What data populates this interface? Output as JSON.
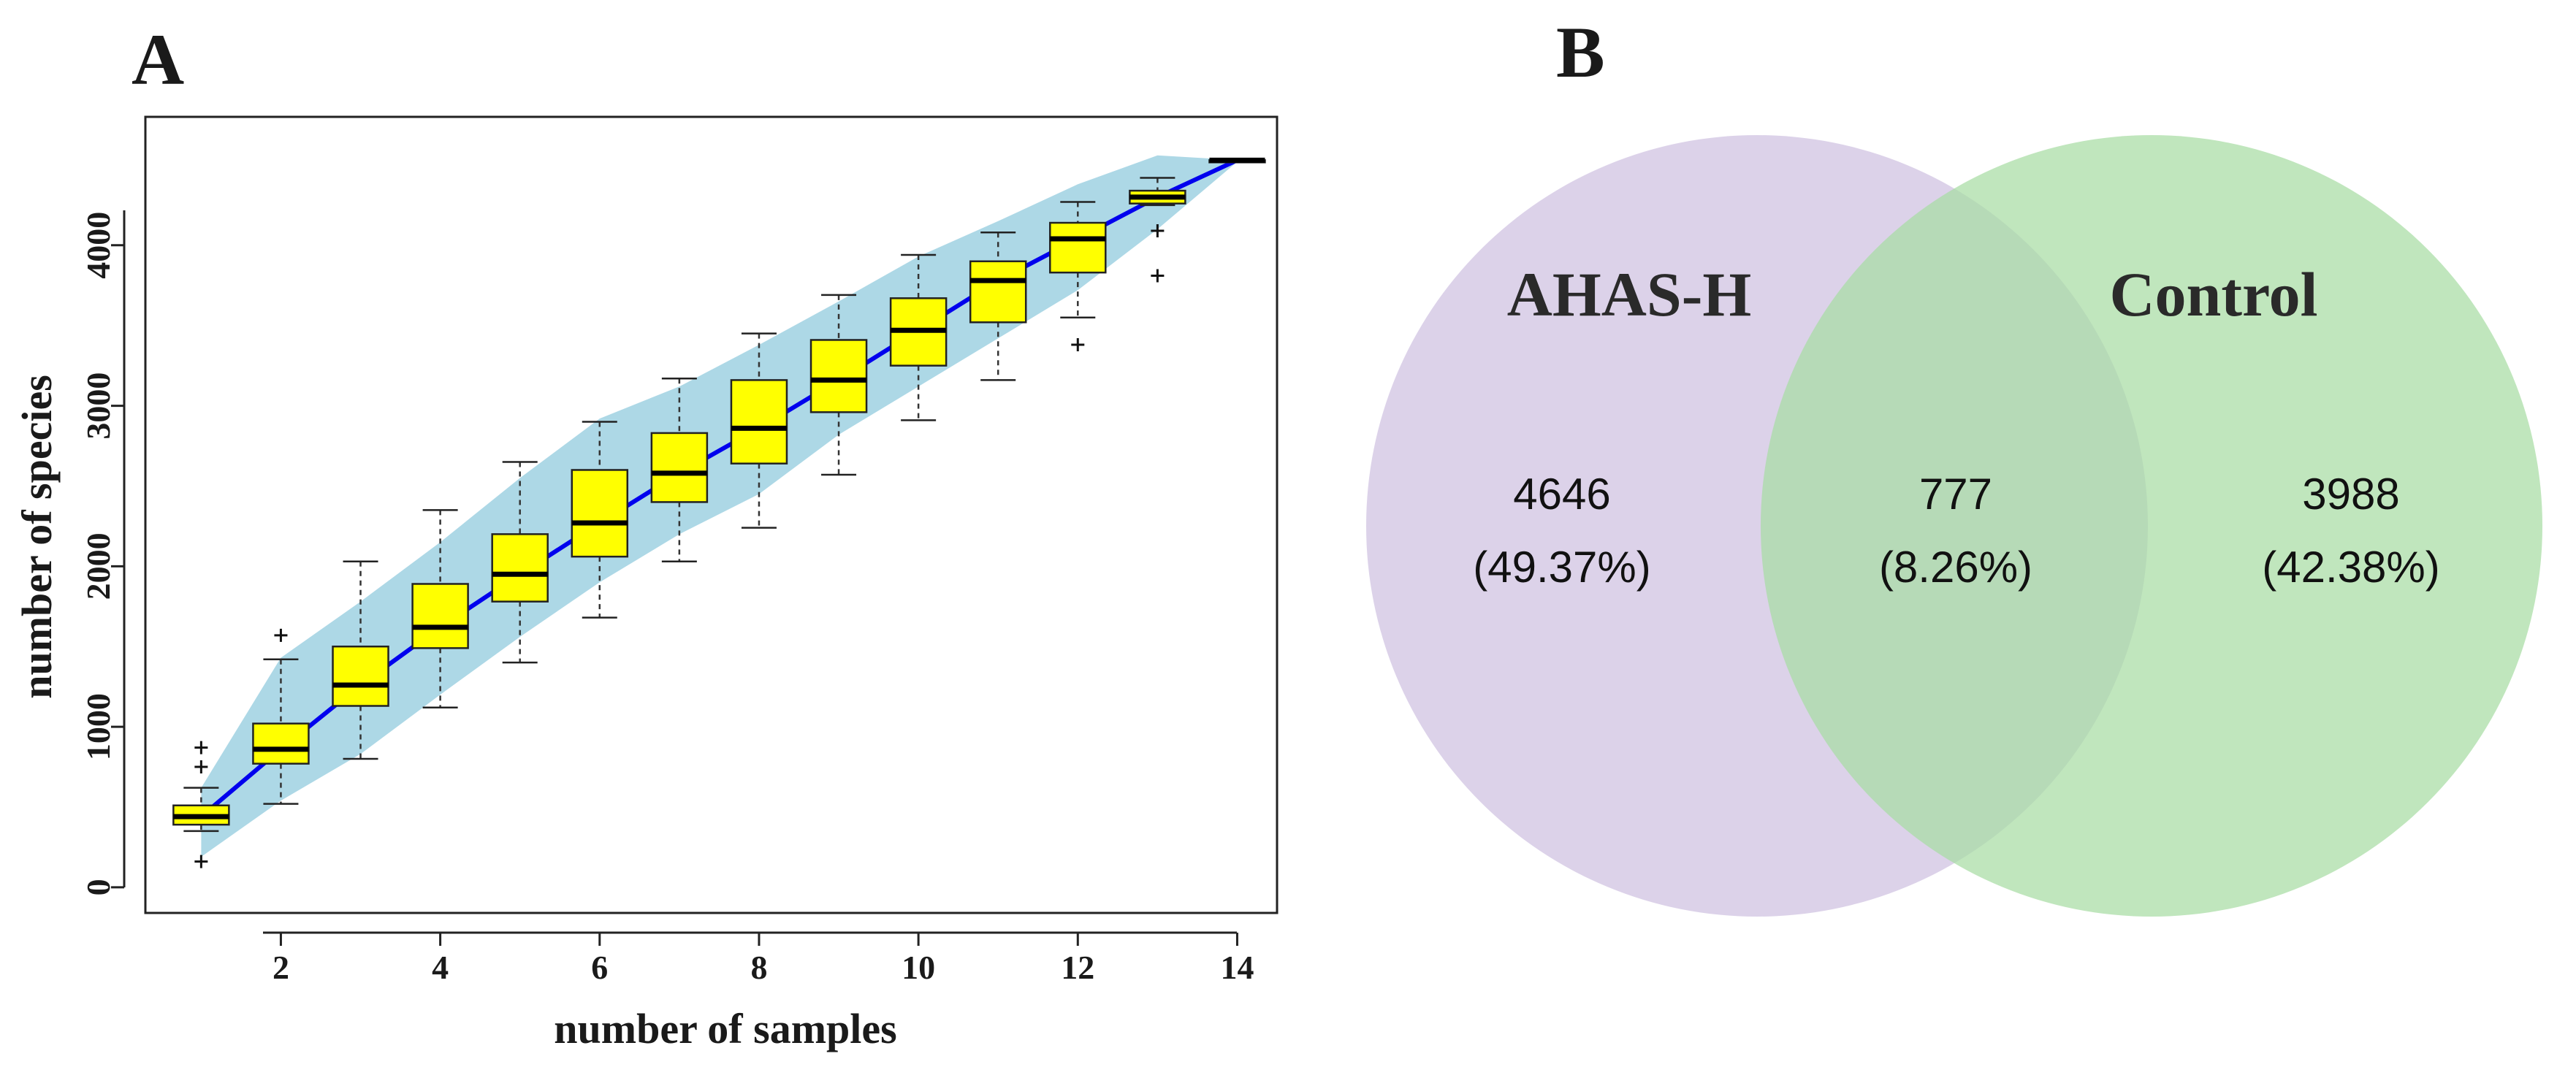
{
  "colors": {
    "envelope": "#add8e6",
    "median_line": "#0000ee",
    "box_fill": "#ffff00",
    "venn_left": "#cfc0e0",
    "venn_right": "#a8dca4"
  },
  "panel_a": {
    "letter": "A",
    "chart_data": {
      "type": "boxplot",
      "title": "",
      "xlabel": "number of samples",
      "ylabel": "number of species",
      "xlim": [
        0.3,
        14.5
      ],
      "ylim": [
        -160,
        4800
      ],
      "x_ticks": [
        2,
        4,
        6,
        8,
        10,
        12,
        14
      ],
      "y_ticks": [
        0,
        1000,
        2000,
        3000,
        4000
      ],
      "envelope": {
        "upper": [
          [
            1,
            620
          ],
          [
            2,
            1430
          ],
          [
            3,
            1780
          ],
          [
            4,
            2150
          ],
          [
            5,
            2550
          ],
          [
            6,
            2920
          ],
          [
            7,
            3120
          ],
          [
            8,
            3380
          ],
          [
            9,
            3650
          ],
          [
            10,
            3930
          ],
          [
            11,
            4150
          ],
          [
            12,
            4380
          ],
          [
            13,
            4560
          ],
          [
            14,
            4530
          ]
        ],
        "lower": [
          [
            14,
            4520
          ],
          [
            13,
            4100
          ],
          [
            12,
            3720
          ],
          [
            11,
            3420
          ],
          [
            10,
            3120
          ],
          [
            9,
            2820
          ],
          [
            8,
            2450
          ],
          [
            7,
            2200
          ],
          [
            6,
            1900
          ],
          [
            5,
            1560
          ],
          [
            4,
            1200
          ],
          [
            3,
            830
          ],
          [
            2,
            540
          ],
          [
            1,
            190
          ]
        ]
      },
      "median_curve": [
        [
          1,
          440
        ],
        [
          2,
          860
        ],
        [
          3,
          1260
        ],
        [
          4,
          1620
        ],
        [
          5,
          1950
        ],
        [
          6,
          2270
        ],
        [
          7,
          2580
        ],
        [
          8,
          2860
        ],
        [
          9,
          3160
        ],
        [
          10,
          3470
        ],
        [
          11,
          3780
        ],
        [
          12,
          4040
        ],
        [
          13,
          4300
        ],
        [
          14,
          4530
        ]
      ],
      "boxes": [
        {
          "x": 1,
          "whisker_low": 350,
          "q1": 390,
          "median": 440,
          "q3": 510,
          "whisker_high": 620,
          "outliers": [
            160,
            750,
            870
          ]
        },
        {
          "x": 2,
          "whisker_low": 520,
          "q1": 770,
          "median": 860,
          "q3": 1020,
          "whisker_high": 1420,
          "outliers": [
            1570
          ]
        },
        {
          "x": 3,
          "whisker_low": 800,
          "q1": 1130,
          "median": 1260,
          "q3": 1500,
          "whisker_high": 2030,
          "outliers": []
        },
        {
          "x": 4,
          "whisker_low": 1120,
          "q1": 1490,
          "median": 1620,
          "q3": 1890,
          "whisker_high": 2350,
          "outliers": []
        },
        {
          "x": 5,
          "whisker_low": 1400,
          "q1": 1780,
          "median": 1950,
          "q3": 2200,
          "whisker_high": 2650,
          "outliers": []
        },
        {
          "x": 6,
          "whisker_low": 1680,
          "q1": 2060,
          "median": 2270,
          "q3": 2600,
          "whisker_high": 2900,
          "outliers": []
        },
        {
          "x": 7,
          "whisker_low": 2030,
          "q1": 2400,
          "median": 2580,
          "q3": 2830,
          "whisker_high": 3170,
          "outliers": []
        },
        {
          "x": 8,
          "whisker_low": 2240,
          "q1": 2640,
          "median": 2860,
          "q3": 3160,
          "whisker_high": 3450,
          "outliers": []
        },
        {
          "x": 9,
          "whisker_low": 2570,
          "q1": 2960,
          "median": 3160,
          "q3": 3410,
          "whisker_high": 3690,
          "outliers": []
        },
        {
          "x": 10,
          "whisker_low": 2910,
          "q1": 3250,
          "median": 3470,
          "q3": 3670,
          "whisker_high": 3940,
          "outliers": []
        },
        {
          "x": 11,
          "whisker_low": 3160,
          "q1": 3520,
          "median": 3780,
          "q3": 3900,
          "whisker_high": 4080,
          "outliers": []
        },
        {
          "x": 12,
          "whisker_low": 3550,
          "q1": 3830,
          "median": 4040,
          "q3": 4140,
          "whisker_high": 4270,
          "outliers": [
            3380
          ]
        },
        {
          "x": 13,
          "whisker_low": 4250,
          "q1": 4260,
          "median": 4300,
          "q3": 4340,
          "whisker_high": 4420,
          "outliers": [
            3810,
            4090
          ]
        },
        {
          "x": 14,
          "whisker_low": 4530,
          "q1": 4530,
          "median": 4530,
          "q3": 4530,
          "whisker_high": 4530,
          "outliers": []
        }
      ]
    }
  },
  "panel_b": {
    "letter": "B",
    "chart_data": {
      "type": "venn",
      "sets": [
        {
          "name": "AHAS-H",
          "color": "#cfc0e0"
        },
        {
          "name": "Control",
          "color": "#a8dca4"
        }
      ],
      "regions": [
        {
          "id": "ahas_only",
          "count": "4646",
          "percent": "(49.37%)"
        },
        {
          "id": "shared",
          "count": "777",
          "percent": "(8.26%)"
        },
        {
          "id": "control_only",
          "count": "3988",
          "percent": "(42.38%)"
        }
      ]
    }
  }
}
